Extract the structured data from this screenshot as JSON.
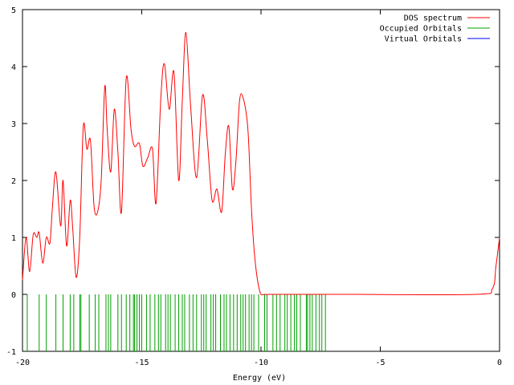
{
  "chart_data": {
    "type": "line",
    "title": "",
    "xlabel": "Energy (eV)",
    "ylabel": "",
    "xlim": [
      -20,
      0
    ],
    "ylim": [
      -1,
      5
    ],
    "x_ticks": [
      -20,
      -15,
      -10,
      -5,
      0
    ],
    "y_ticks": [
      -1,
      0,
      1,
      2,
      3,
      4,
      5
    ],
    "grid": false,
    "legend_position": "top-right",
    "series": [
      {
        "name": "DOS spectrum",
        "kind": "line",
        "color": "#ff0000",
        "x": [
          -20.0,
          -19.85,
          -19.7,
          -19.55,
          -19.4,
          -19.3,
          -19.15,
          -19.0,
          -18.85,
          -18.75,
          -18.6,
          -18.4,
          -18.3,
          -18.15,
          -18.0,
          -17.9,
          -17.75,
          -17.6,
          -17.45,
          -17.3,
          -17.15,
          -17.0,
          -16.85,
          -16.7,
          -16.55,
          -16.45,
          -16.3,
          -16.15,
          -16.0,
          -15.85,
          -15.65,
          -15.45,
          -15.3,
          -15.1,
          -14.95,
          -14.75,
          -14.55,
          -14.4,
          -14.2,
          -14.05,
          -13.85,
          -13.65,
          -13.45,
          -13.3,
          -13.15,
          -12.95,
          -12.7,
          -12.45,
          -12.25,
          -12.05,
          -11.85,
          -11.65,
          -11.5,
          -11.35,
          -11.2,
          -11.05,
          -10.9,
          -10.75,
          -10.55,
          -10.4,
          -10.25,
          -10.05,
          -9.85,
          -9.65,
          -9.5,
          -9.3,
          -9.1,
          -8.95,
          -8.8,
          -8.65,
          -8.45,
          -8.25,
          -8.1,
          -7.9,
          -7.7,
          -7.5,
          -7.3,
          -7.15,
          -7.0,
          -6.85,
          -6.0,
          -1.0,
          -0.3,
          -0.15,
          0.0
        ],
        "y": [
          0.25,
          1.0,
          0.4,
          1.05,
          1.0,
          1.08,
          0.55,
          1.0,
          0.9,
          1.5,
          2.15,
          1.2,
          2.0,
          0.85,
          1.65,
          1.2,
          0.3,
          1.0,
          2.95,
          2.55,
          2.7,
          1.55,
          1.45,
          2.0,
          3.65,
          2.9,
          2.15,
          3.25,
          2.5,
          1.45,
          3.8,
          2.9,
          2.6,
          2.65,
          2.25,
          2.4,
          2.55,
          1.6,
          3.45,
          4.05,
          3.25,
          3.9,
          2.0,
          3.4,
          4.6,
          3.3,
          2.05,
          3.5,
          2.7,
          1.65,
          1.85,
          1.45,
          2.45,
          2.95,
          1.85,
          2.35,
          3.4,
          3.45,
          2.9,
          1.5,
          0.6,
          0.05,
          0.0,
          0.0,
          0.0,
          0.0,
          0.0,
          0.0,
          0.0,
          0.0,
          0.0,
          0.0,
          0.0,
          0.0,
          0.0,
          0.0,
          0.0,
          0.0,
          0.0,
          0.0,
          0.0,
          0.0,
          0.1,
          0.5,
          1.0
        ]
      },
      {
        "name": "Occupied Orbitals",
        "kind": "impulse",
        "color": "#00a000",
        "baseline": -1,
        "height": 0,
        "x": [
          -19.8,
          -19.3,
          -19.0,
          -18.6,
          -18.3,
          -18.0,
          -17.85,
          -17.6,
          -17.55,
          -17.2,
          -16.95,
          -16.8,
          -16.5,
          -16.4,
          -16.3,
          -16.0,
          -15.85,
          -15.65,
          -15.5,
          -15.35,
          -15.3,
          -15.2,
          -15.1,
          -15.0,
          -14.8,
          -14.65,
          -14.45,
          -14.3,
          -14.2,
          -14.0,
          -13.9,
          -13.8,
          -13.6,
          -13.45,
          -13.3,
          -13.2,
          -13.0,
          -12.85,
          -12.7,
          -12.5,
          -12.4,
          -12.3,
          -12.1,
          -12.0,
          -11.9,
          -11.7,
          -11.55,
          -11.45,
          -11.3,
          -11.15,
          -11.0,
          -10.85,
          -10.75,
          -10.65,
          -10.5,
          -10.4,
          -10.3,
          -10.1,
          -9.85,
          -9.75,
          -9.5,
          -9.35,
          -9.2,
          -9.0,
          -8.9,
          -8.75,
          -8.6,
          -8.5,
          -8.35,
          -8.1,
          -8.05,
          -7.95,
          -7.85,
          -7.7,
          -7.55,
          -7.45,
          -7.3
        ]
      },
      {
        "name": "Virtual Orbitals",
        "kind": "impulse",
        "color": "#0000ff",
        "baseline": -1,
        "height": 0,
        "x": []
      }
    ]
  }
}
